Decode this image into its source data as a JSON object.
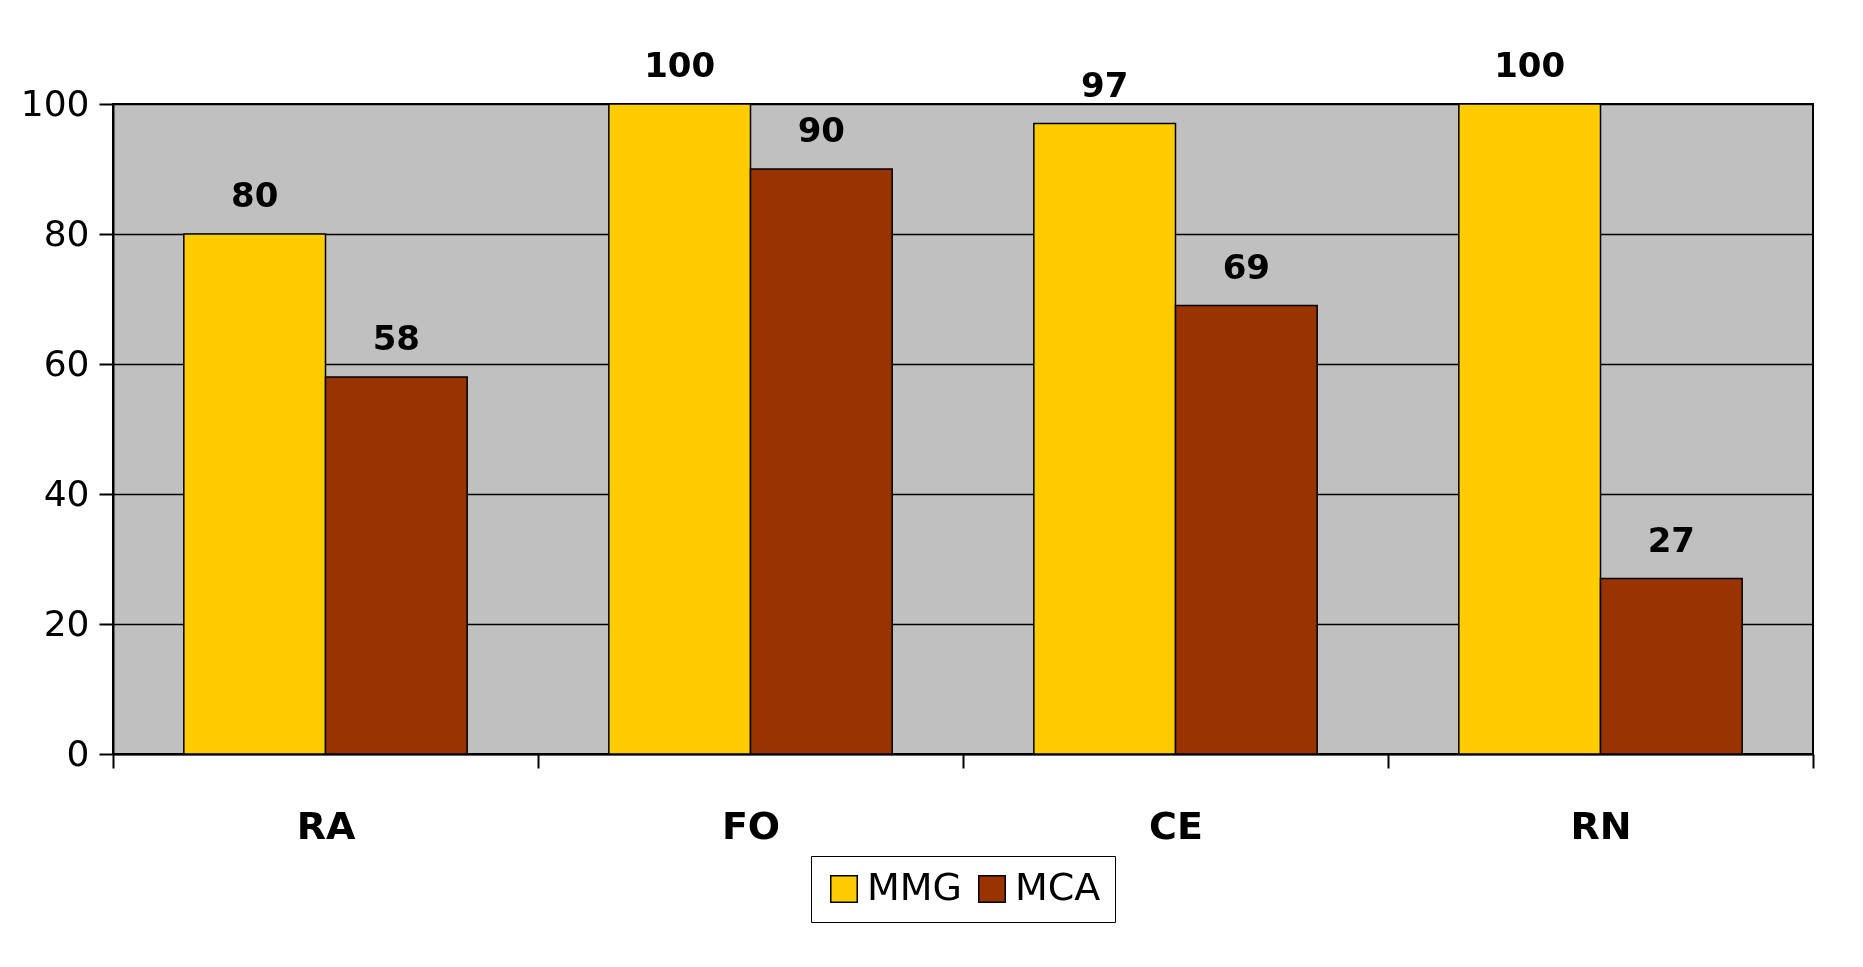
{
  "chart_data": {
    "type": "bar",
    "categories": [
      "RA",
      "FO",
      "CE",
      "RN"
    ],
    "series": [
      {
        "name": "MMG",
        "color": "#ffcc00",
        "values": [
          80,
          100,
          97,
          100
        ]
      },
      {
        "name": "MCA",
        "color": "#993300",
        "values": [
          58,
          90,
          69,
          27
        ]
      }
    ],
    "ylim": [
      0,
      100
    ],
    "yticks": [
      0,
      20,
      40,
      60,
      80,
      100
    ],
    "grid": "y",
    "legend": "bottom",
    "data_labels": true
  }
}
